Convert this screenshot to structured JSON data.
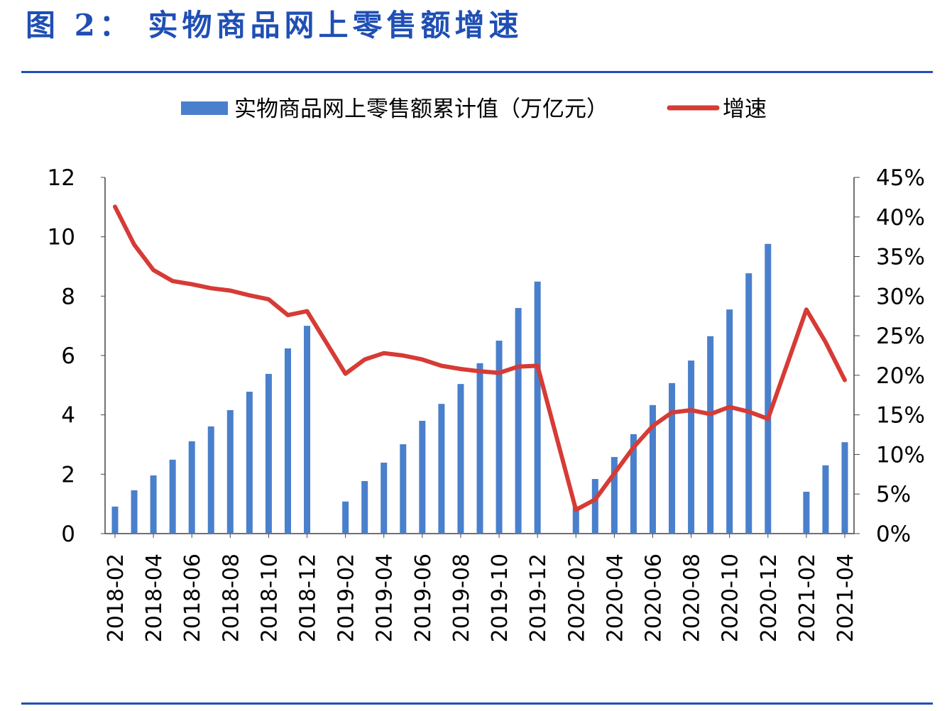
{
  "title": "图 2： 实物商品网上零售额增速",
  "chart_data": {
    "type": "bar+line",
    "title": "",
    "legend_position": "top",
    "categories": [
      "2018-02",
      "2018-03",
      "2018-04",
      "2018-05",
      "2018-06",
      "2018-07",
      "2018-08",
      "2018-09",
      "2018-10",
      "2018-11",
      "2018-12",
      "2019-01",
      "2019-02",
      "2019-03",
      "2019-04",
      "2019-05",
      "2019-06",
      "2019-07",
      "2019-08",
      "2019-09",
      "2019-10",
      "2019-11",
      "2019-12",
      "2020-01",
      "2020-02",
      "2020-03",
      "2020-04",
      "2020-05",
      "2020-06",
      "2020-07",
      "2020-08",
      "2020-09",
      "2020-10",
      "2020-11",
      "2020-12",
      "2021-01",
      "2021-02",
      "2021-03",
      "2021-04"
    ],
    "x_tick_labels": [
      "2018-02",
      "2018-04",
      "2018-06",
      "2018-08",
      "2018-10",
      "2018-12",
      "2019-02",
      "2019-04",
      "2019-06",
      "2019-08",
      "2019-10",
      "2019-12",
      "2020-02",
      "2020-04",
      "2020-06",
      "2020-08",
      "2020-10",
      "2020-12",
      "2021-02",
      "2021-04"
    ],
    "series": [
      {
        "name": "实物商品网上零售额累计值（万亿元）",
        "type": "bar",
        "axis": "left",
        "color": "#4a7fcb",
        "values": [
          0.91,
          1.46,
          1.96,
          2.49,
          3.11,
          3.61,
          4.16,
          4.78,
          5.38,
          6.24,
          7.0,
          null,
          1.08,
          1.77,
          2.39,
          3.01,
          3.8,
          4.37,
          5.04,
          5.74,
          6.5,
          7.6,
          8.49,
          null,
          0.92,
          1.84,
          2.58,
          3.35,
          4.33,
          5.07,
          5.83,
          6.65,
          7.55,
          8.77,
          9.76,
          null,
          1.41,
          2.3,
          3.08
        ]
      },
      {
        "name": "增速",
        "type": "line",
        "axis": "right",
        "color": "#d63b35",
        "values": [
          41.3,
          36.5,
          33.3,
          31.9,
          31.5,
          31.0,
          30.7,
          30.1,
          29.6,
          27.6,
          28.1,
          null,
          20.2,
          22.0,
          22.8,
          22.5,
          22.0,
          21.2,
          20.8,
          20.5,
          20.3,
          21.1,
          21.2,
          null,
          3.0,
          4.3,
          7.6,
          10.9,
          13.6,
          15.3,
          15.6,
          15.1,
          16.0,
          15.4,
          14.5,
          null,
          28.3,
          24.2,
          19.4
        ]
      }
    ],
    "y_left": {
      "range": [
        0,
        12
      ],
      "ticks": [
        "0",
        "2",
        "4",
        "6",
        "8",
        "10",
        "12"
      ]
    },
    "y_right": {
      "range": [
        0,
        45
      ],
      "ticks": [
        "0%",
        "5%",
        "10%",
        "15%",
        "20%",
        "25%",
        "30%",
        "35%",
        "40%",
        "45%"
      ]
    },
    "grid": false
  }
}
